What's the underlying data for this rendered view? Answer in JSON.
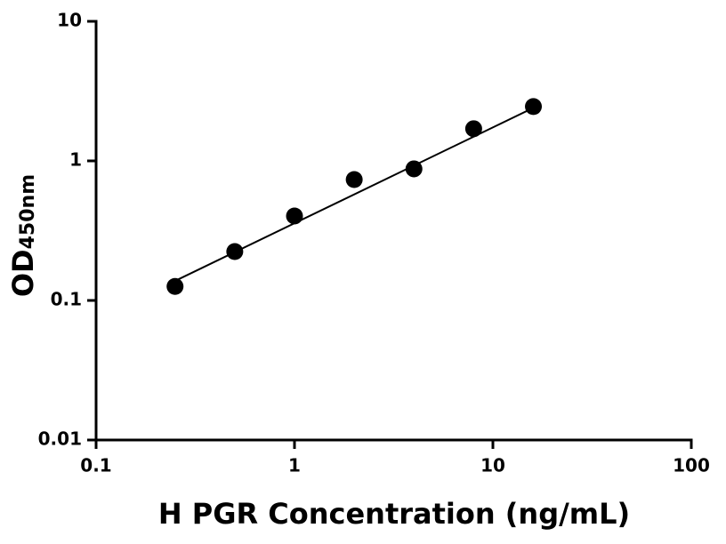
{
  "chart_data": {
    "type": "scatter",
    "xlabel": "H PGR Concentration (ng/mL)",
    "ylabel": "OD",
    "ylabel_sub": "450nm",
    "xlog": true,
    "ylog": true,
    "xlim": [
      0.1,
      100
    ],
    "xticks": [
      0.1,
      1,
      10,
      100
    ],
    "ylim": [
      0.01,
      10
    ],
    "yticks": [
      0.01,
      0.1,
      1,
      10
    ],
    "color": "#000000",
    "x": [
      0.25,
      0.5,
      1,
      2,
      4,
      8,
      16
    ],
    "values": [
      0.126,
      0.224,
      0.403,
      0.735,
      0.877,
      1.7,
      2.45
    ],
    "fit_line": {
      "x": [
        0.25,
        16
      ],
      "values": [
        0.138,
        2.4
      ]
    }
  }
}
